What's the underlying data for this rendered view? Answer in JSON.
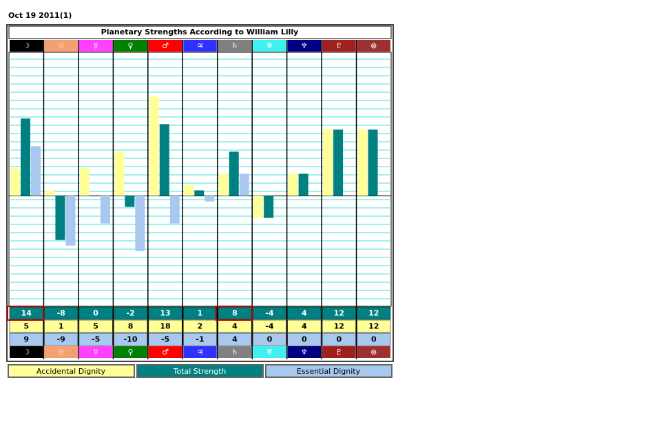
{
  "date": "Oct 19 2011(1)",
  "chart_data": {
    "type": "bar",
    "title": "Planetary Strengths According to William Lilly",
    "categories": [
      "☽",
      "☉",
      "☿",
      "♀",
      "♂",
      "♃",
      "♄",
      "♅",
      "♆",
      "♇",
      "⊗"
    ],
    "category_colors": [
      "#000000",
      "#f4a070",
      "#ff40ff",
      "#008000",
      "#ff0000",
      "#3030ff",
      "#808080",
      "#40f0f0",
      "#000080",
      "#a02020",
      "#a03030"
    ],
    "series": [
      {
        "name": "Accidental Dignity",
        "color": "#ffff99",
        "values": [
          5,
          1,
          5,
          8,
          18,
          2,
          4,
          -4,
          4,
          12,
          12
        ]
      },
      {
        "name": "Total Strength",
        "color": "#008080",
        "values": [
          14,
          -8,
          0,
          -2,
          13,
          1,
          8,
          -4,
          4,
          12,
          12
        ]
      },
      {
        "name": "Essential Dignity",
        "color": "#a8c8f0",
        "values": [
          9,
          -9,
          -5,
          -10,
          -5,
          -1,
          4,
          0,
          0,
          0,
          0
        ]
      }
    ],
    "table_order": [
      1,
      0,
      2
    ],
    "highlighted": [
      0,
      6
    ],
    "ylim": [
      -20,
      26
    ]
  }
}
